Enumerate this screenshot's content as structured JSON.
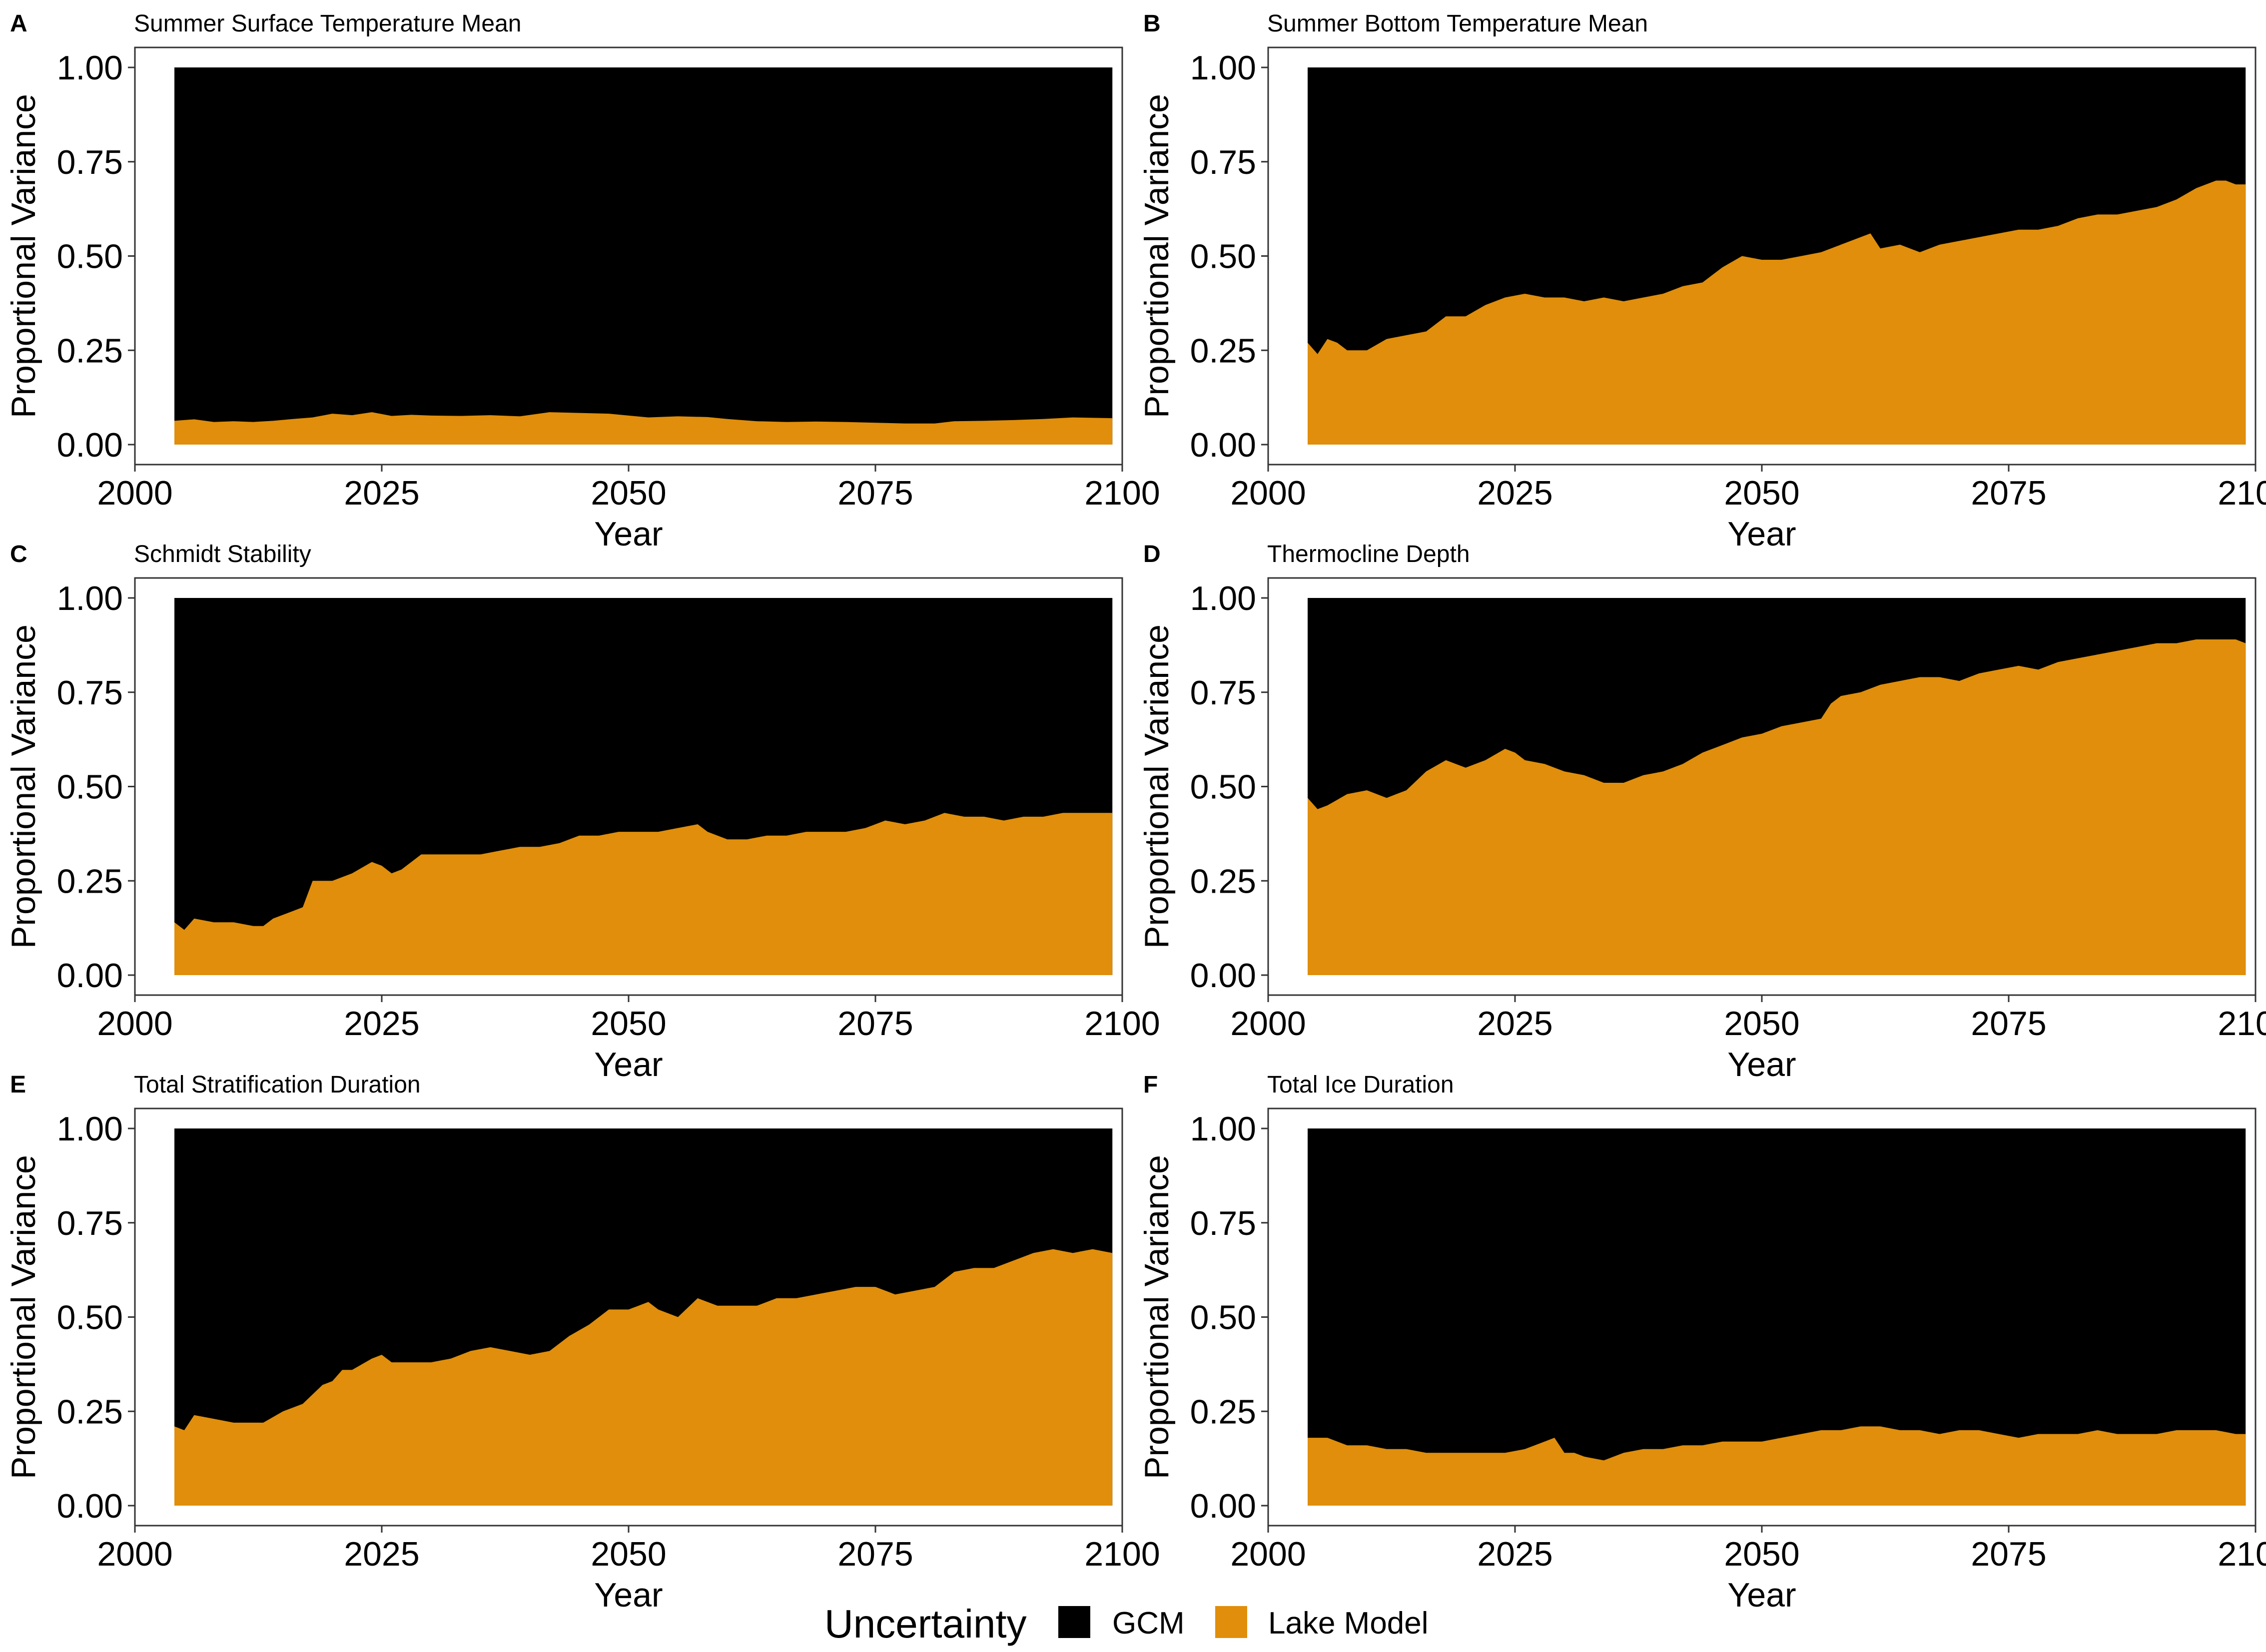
{
  "chart_data": {
    "type": "area",
    "stacked": true,
    "normalized": true,
    "legend": {
      "title": "Uncertainty",
      "position": "bottom",
      "entries": [
        {
          "name": "GCM",
          "color": "#000000"
        },
        {
          "name": "Lake Model",
          "color": "#e08e0b"
        }
      ]
    },
    "shared_axes": {
      "xlabel": "Year",
      "ylabel": "Proportional Variance",
      "xlim": [
        2000,
        2100
      ],
      "ylim": [
        0,
        1
      ],
      "xticks": [
        "2000",
        "2025",
        "2050",
        "2075",
        "2100"
      ],
      "yticks": [
        "0.00",
        "0.25",
        "0.50",
        "0.75",
        "1.00"
      ],
      "grid": false
    },
    "panels": [
      {
        "tag": "A",
        "title": "Summer Surface Temperature Mean",
        "x_range": [
          2004,
          2099
        ],
        "lake_model": [
          [
            2004,
            0.063
          ],
          [
            2006,
            0.067
          ],
          [
            2008,
            0.06
          ],
          [
            2010,
            0.062
          ],
          [
            2012,
            0.06
          ],
          [
            2014,
            0.063
          ],
          [
            2016,
            0.068
          ],
          [
            2018,
            0.072
          ],
          [
            2020,
            0.082
          ],
          [
            2022,
            0.078
          ],
          [
            2024,
            0.086
          ],
          [
            2026,
            0.076
          ],
          [
            2028,
            0.079
          ],
          [
            2030,
            0.077
          ],
          [
            2033,
            0.076
          ],
          [
            2036,
            0.078
          ],
          [
            2039,
            0.075
          ],
          [
            2042,
            0.086
          ],
          [
            2045,
            0.084
          ],
          [
            2048,
            0.082
          ],
          [
            2050,
            0.077
          ],
          [
            2052,
            0.072
          ],
          [
            2055,
            0.075
          ],
          [
            2058,
            0.073
          ],
          [
            2060,
            0.068
          ],
          [
            2063,
            0.062
          ],
          [
            2066,
            0.06
          ],
          [
            2069,
            0.061
          ],
          [
            2072,
            0.06
          ],
          [
            2075,
            0.058
          ],
          [
            2078,
            0.056
          ],
          [
            2081,
            0.056
          ],
          [
            2083,
            0.062
          ],
          [
            2086,
            0.063
          ],
          [
            2089,
            0.065
          ],
          [
            2092,
            0.068
          ],
          [
            2095,
            0.072
          ],
          [
            2097,
            0.071
          ],
          [
            2099,
            0.07
          ]
        ]
      },
      {
        "tag": "B",
        "title": "Summer Bottom Temperature Mean",
        "x_range": [
          2004,
          2099
        ],
        "lake_model": [
          [
            2004,
            0.27
          ],
          [
            2005,
            0.24
          ],
          [
            2006,
            0.28
          ],
          [
            2007,
            0.27
          ],
          [
            2008,
            0.25
          ],
          [
            2010,
            0.25
          ],
          [
            2012,
            0.28
          ],
          [
            2014,
            0.29
          ],
          [
            2016,
            0.3
          ],
          [
            2018,
            0.34
          ],
          [
            2020,
            0.34
          ],
          [
            2022,
            0.37
          ],
          [
            2024,
            0.39
          ],
          [
            2026,
            0.4
          ],
          [
            2028,
            0.39
          ],
          [
            2030,
            0.39
          ],
          [
            2032,
            0.38
          ],
          [
            2034,
            0.39
          ],
          [
            2036,
            0.38
          ],
          [
            2038,
            0.39
          ],
          [
            2040,
            0.4
          ],
          [
            2042,
            0.42
          ],
          [
            2044,
            0.43
          ],
          [
            2046,
            0.47
          ],
          [
            2048,
            0.5
          ],
          [
            2050,
            0.49
          ],
          [
            2052,
            0.49
          ],
          [
            2054,
            0.5
          ],
          [
            2056,
            0.51
          ],
          [
            2058,
            0.53
          ],
          [
            2060,
            0.55
          ],
          [
            2061,
            0.56
          ],
          [
            2062,
            0.52
          ],
          [
            2064,
            0.53
          ],
          [
            2066,
            0.51
          ],
          [
            2068,
            0.53
          ],
          [
            2070,
            0.54
          ],
          [
            2072,
            0.55
          ],
          [
            2074,
            0.56
          ],
          [
            2076,
            0.57
          ],
          [
            2078,
            0.57
          ],
          [
            2080,
            0.58
          ],
          [
            2082,
            0.6
          ],
          [
            2084,
            0.61
          ],
          [
            2086,
            0.61
          ],
          [
            2088,
            0.62
          ],
          [
            2090,
            0.63
          ],
          [
            2092,
            0.65
          ],
          [
            2094,
            0.68
          ],
          [
            2096,
            0.7
          ],
          [
            2097,
            0.7
          ],
          [
            2098,
            0.69
          ],
          [
            2099,
            0.69
          ]
        ]
      },
      {
        "tag": "C",
        "title": "Schmidt Stability",
        "x_range": [
          2004,
          2099
        ],
        "lake_model": [
          [
            2004,
            0.14
          ],
          [
            2005,
            0.12
          ],
          [
            2006,
            0.15
          ],
          [
            2008,
            0.14
          ],
          [
            2010,
            0.14
          ],
          [
            2012,
            0.13
          ],
          [
            2013,
            0.13
          ],
          [
            2014,
            0.15
          ],
          [
            2016,
            0.17
          ],
          [
            2017,
            0.18
          ],
          [
            2018,
            0.25
          ],
          [
            2020,
            0.25
          ],
          [
            2022,
            0.27
          ],
          [
            2024,
            0.3
          ],
          [
            2025,
            0.29
          ],
          [
            2026,
            0.27
          ],
          [
            2027,
            0.28
          ],
          [
            2029,
            0.32
          ],
          [
            2031,
            0.32
          ],
          [
            2033,
            0.32
          ],
          [
            2035,
            0.32
          ],
          [
            2037,
            0.33
          ],
          [
            2039,
            0.34
          ],
          [
            2041,
            0.34
          ],
          [
            2043,
            0.35
          ],
          [
            2045,
            0.37
          ],
          [
            2047,
            0.37
          ],
          [
            2049,
            0.38
          ],
          [
            2051,
            0.38
          ],
          [
            2053,
            0.38
          ],
          [
            2055,
            0.39
          ],
          [
            2057,
            0.4
          ],
          [
            2058,
            0.38
          ],
          [
            2060,
            0.36
          ],
          [
            2062,
            0.36
          ],
          [
            2064,
            0.37
          ],
          [
            2066,
            0.37
          ],
          [
            2068,
            0.38
          ],
          [
            2070,
            0.38
          ],
          [
            2072,
            0.38
          ],
          [
            2074,
            0.39
          ],
          [
            2076,
            0.41
          ],
          [
            2078,
            0.4
          ],
          [
            2080,
            0.41
          ],
          [
            2082,
            0.43
          ],
          [
            2084,
            0.42
          ],
          [
            2086,
            0.42
          ],
          [
            2088,
            0.41
          ],
          [
            2090,
            0.42
          ],
          [
            2092,
            0.42
          ],
          [
            2094,
            0.43
          ],
          [
            2096,
            0.43
          ],
          [
            2097,
            0.43
          ],
          [
            2099,
            0.43
          ]
        ]
      },
      {
        "tag": "D",
        "title": "Thermocline Depth",
        "x_range": [
          2004,
          2099
        ],
        "lake_model": [
          [
            2004,
            0.47
          ],
          [
            2005,
            0.44
          ],
          [
            2006,
            0.45
          ],
          [
            2008,
            0.48
          ],
          [
            2010,
            0.49
          ],
          [
            2012,
            0.47
          ],
          [
            2014,
            0.49
          ],
          [
            2016,
            0.54
          ],
          [
            2018,
            0.57
          ],
          [
            2020,
            0.55
          ],
          [
            2022,
            0.57
          ],
          [
            2024,
            0.6
          ],
          [
            2025,
            0.59
          ],
          [
            2026,
            0.57
          ],
          [
            2028,
            0.56
          ],
          [
            2030,
            0.54
          ],
          [
            2032,
            0.53
          ],
          [
            2034,
            0.51
          ],
          [
            2036,
            0.51
          ],
          [
            2038,
            0.53
          ],
          [
            2040,
            0.54
          ],
          [
            2042,
            0.56
          ],
          [
            2044,
            0.59
          ],
          [
            2046,
            0.61
          ],
          [
            2048,
            0.63
          ],
          [
            2050,
            0.64
          ],
          [
            2052,
            0.66
          ],
          [
            2054,
            0.67
          ],
          [
            2056,
            0.68
          ],
          [
            2057,
            0.72
          ],
          [
            2058,
            0.74
          ],
          [
            2060,
            0.75
          ],
          [
            2062,
            0.77
          ],
          [
            2064,
            0.78
          ],
          [
            2066,
            0.79
          ],
          [
            2068,
            0.79
          ],
          [
            2070,
            0.78
          ],
          [
            2072,
            0.8
          ],
          [
            2074,
            0.81
          ],
          [
            2076,
            0.82
          ],
          [
            2078,
            0.81
          ],
          [
            2080,
            0.83
          ],
          [
            2082,
            0.84
          ],
          [
            2084,
            0.85
          ],
          [
            2086,
            0.86
          ],
          [
            2088,
            0.87
          ],
          [
            2090,
            0.88
          ],
          [
            2092,
            0.88
          ],
          [
            2094,
            0.89
          ],
          [
            2096,
            0.89
          ],
          [
            2098,
            0.89
          ],
          [
            2099,
            0.88
          ]
        ]
      },
      {
        "tag": "E",
        "title": "Total Stratification Duration",
        "x_range": [
          2004,
          2099
        ],
        "lake_model": [
          [
            2004,
            0.21
          ],
          [
            2005,
            0.2
          ],
          [
            2006,
            0.24
          ],
          [
            2008,
            0.23
          ],
          [
            2010,
            0.22
          ],
          [
            2012,
            0.22
          ],
          [
            2013,
            0.22
          ],
          [
            2015,
            0.25
          ],
          [
            2017,
            0.27
          ],
          [
            2019,
            0.32
          ],
          [
            2020,
            0.33
          ],
          [
            2021,
            0.36
          ],
          [
            2022,
            0.36
          ],
          [
            2024,
            0.39
          ],
          [
            2025,
            0.4
          ],
          [
            2026,
            0.38
          ],
          [
            2028,
            0.38
          ],
          [
            2030,
            0.38
          ],
          [
            2032,
            0.39
          ],
          [
            2034,
            0.41
          ],
          [
            2036,
            0.42
          ],
          [
            2038,
            0.41
          ],
          [
            2040,
            0.4
          ],
          [
            2042,
            0.41
          ],
          [
            2044,
            0.45
          ],
          [
            2046,
            0.48
          ],
          [
            2048,
            0.52
          ],
          [
            2050,
            0.52
          ],
          [
            2052,
            0.54
          ],
          [
            2053,
            0.52
          ],
          [
            2055,
            0.5
          ],
          [
            2057,
            0.55
          ],
          [
            2059,
            0.53
          ],
          [
            2061,
            0.53
          ],
          [
            2063,
            0.53
          ],
          [
            2065,
            0.55
          ],
          [
            2067,
            0.55
          ],
          [
            2069,
            0.56
          ],
          [
            2071,
            0.57
          ],
          [
            2073,
            0.58
          ],
          [
            2075,
            0.58
          ],
          [
            2077,
            0.56
          ],
          [
            2079,
            0.57
          ],
          [
            2081,
            0.58
          ],
          [
            2083,
            0.62
          ],
          [
            2085,
            0.63
          ],
          [
            2087,
            0.63
          ],
          [
            2089,
            0.65
          ],
          [
            2091,
            0.67
          ],
          [
            2093,
            0.68
          ],
          [
            2095,
            0.67
          ],
          [
            2097,
            0.68
          ],
          [
            2099,
            0.67
          ]
        ]
      },
      {
        "tag": "F",
        "title": "Total Ice Duration",
        "x_range": [
          2004,
          2099
        ],
        "lake_model": [
          [
            2004,
            0.18
          ],
          [
            2006,
            0.18
          ],
          [
            2008,
            0.16
          ],
          [
            2010,
            0.16
          ],
          [
            2012,
            0.15
          ],
          [
            2014,
            0.15
          ],
          [
            2016,
            0.14
          ],
          [
            2018,
            0.14
          ],
          [
            2020,
            0.14
          ],
          [
            2022,
            0.14
          ],
          [
            2024,
            0.14
          ],
          [
            2026,
            0.15
          ],
          [
            2028,
            0.17
          ],
          [
            2029,
            0.18
          ],
          [
            2030,
            0.14
          ],
          [
            2031,
            0.14
          ],
          [
            2032,
            0.13
          ],
          [
            2034,
            0.12
          ],
          [
            2036,
            0.14
          ],
          [
            2038,
            0.15
          ],
          [
            2040,
            0.15
          ],
          [
            2042,
            0.16
          ],
          [
            2044,
            0.16
          ],
          [
            2046,
            0.17
          ],
          [
            2048,
            0.17
          ],
          [
            2050,
            0.17
          ],
          [
            2052,
            0.18
          ],
          [
            2054,
            0.19
          ],
          [
            2056,
            0.2
          ],
          [
            2058,
            0.2
          ],
          [
            2060,
            0.21
          ],
          [
            2062,
            0.21
          ],
          [
            2064,
            0.2
          ],
          [
            2066,
            0.2
          ],
          [
            2068,
            0.19
          ],
          [
            2070,
            0.2
          ],
          [
            2072,
            0.2
          ],
          [
            2074,
            0.19
          ],
          [
            2076,
            0.18
          ],
          [
            2078,
            0.19
          ],
          [
            2080,
            0.19
          ],
          [
            2082,
            0.19
          ],
          [
            2084,
            0.2
          ],
          [
            2086,
            0.19
          ],
          [
            2088,
            0.19
          ],
          [
            2090,
            0.19
          ],
          [
            2092,
            0.2
          ],
          [
            2094,
            0.2
          ],
          [
            2096,
            0.2
          ],
          [
            2098,
            0.19
          ],
          [
            2099,
            0.19
          ]
        ]
      }
    ]
  }
}
